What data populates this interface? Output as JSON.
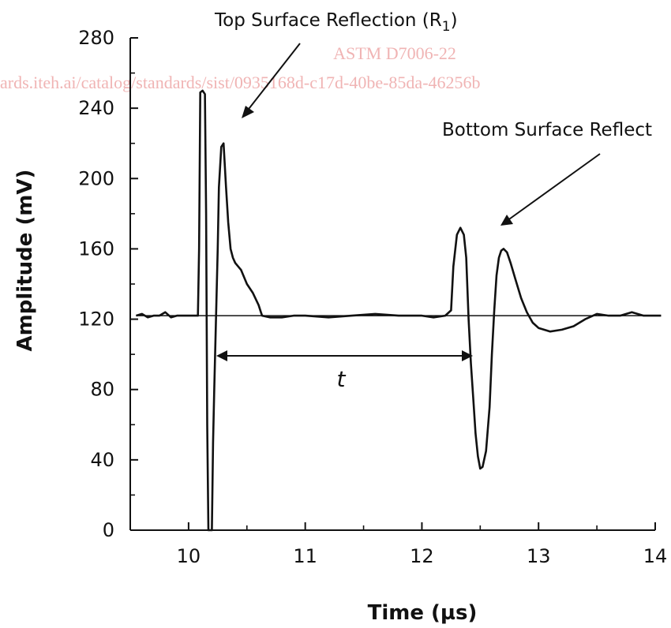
{
  "chart_data": {
    "type": "line",
    "title": "",
    "xlabel": "Time (µs)",
    "ylabel": "Amplitude (mV)",
    "xlim": [
      9.5,
      14
    ],
    "ylim": [
      0,
      280
    ],
    "xticks": [
      10,
      11,
      12,
      13,
      14
    ],
    "yticks": [
      0,
      40,
      80,
      120,
      160,
      200,
      240,
      280
    ],
    "grid": false,
    "baseline": 122,
    "series": [
      {
        "x": [
          9.55,
          9.6,
          9.65,
          9.7,
          9.75,
          9.8,
          9.85,
          9.9,
          9.95,
          10.0,
          10.05,
          10.08,
          10.09,
          10.1,
          10.12,
          10.14,
          10.15,
          10.16,
          10.17,
          10.18,
          10.19,
          10.2,
          10.21,
          10.22,
          10.25,
          10.26,
          10.28,
          10.3,
          10.32,
          10.34,
          10.36,
          10.38,
          10.4,
          10.45,
          10.5,
          10.55,
          10.6,
          10.62,
          10.63,
          10.7,
          10.8,
          10.9,
          11.0,
          11.2,
          11.4,
          11.6,
          11.8,
          12.0,
          12.1,
          12.2,
          12.25,
          12.27,
          12.3,
          12.33,
          12.36,
          12.38,
          12.4,
          12.42,
          12.44,
          12.46,
          12.48,
          12.5,
          12.52,
          12.55,
          12.58,
          12.6,
          12.62,
          12.64,
          12.66,
          12.68,
          12.7,
          12.73,
          12.76,
          12.8,
          12.85,
          12.9,
          12.95,
          13.0,
          13.1,
          13.2,
          13.3,
          13.4,
          13.5,
          13.6,
          13.7,
          13.8,
          13.9,
          14.0,
          14.05
        ],
        "y": [
          122,
          123,
          121,
          122,
          122,
          124,
          121,
          122,
          122,
          122,
          122,
          122,
          160,
          249,
          250,
          248,
          180,
          60,
          0,
          0,
          0,
          0,
          50,
          80,
          160,
          195,
          218,
          220,
          196,
          175,
          160,
          155,
          152,
          148,
          140,
          135,
          128,
          124,
          122,
          121,
          121,
          122,
          122,
          121,
          122,
          123,
          122,
          122,
          121,
          122,
          125,
          150,
          168,
          172,
          168,
          155,
          120,
          95,
          75,
          55,
          42,
          35,
          36,
          45,
          70,
          100,
          125,
          145,
          155,
          159,
          160,
          158,
          152,
          143,
          132,
          124,
          118,
          115,
          113,
          114,
          116,
          120,
          123,
          122,
          122,
          124,
          122,
          122,
          122
        ]
      }
    ],
    "annotations": {
      "top_label": "Top Surface Reflection (R",
      "top_subscript": "1",
      "top_label_close": ")",
      "bottom_label": "Bottom Surface Reflect",
      "interval_label": "t"
    }
  },
  "watermark": {
    "line1": "ASTM D7006-22",
    "line2": "ards.iteh.ai/catalog/standards/sist/0935168d-c17d-40be-85da-46256b"
  },
  "colors": {
    "line": "#111111",
    "watermark": "#f0b4b4"
  }
}
